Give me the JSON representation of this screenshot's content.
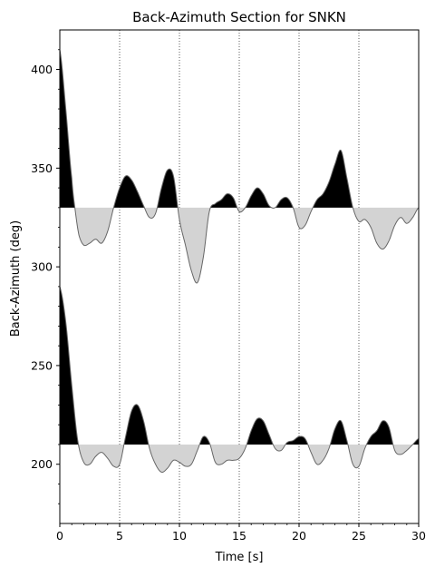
{
  "chart_data": {
    "type": "area",
    "title": "Back-Azimuth Section for SNKN",
    "xlabel": "Time [s]",
    "ylabel": "Back-Azimuth (deg)",
    "xlim": [
      0,
      30
    ],
    "ylim": [
      170,
      420
    ],
    "xticks": [
      "0",
      "5",
      "10",
      "15",
      "20",
      "25",
      "30"
    ],
    "yticks": [
      "200",
      "250",
      "300",
      "350",
      "400"
    ],
    "xtick_values": [
      0,
      5,
      10,
      15,
      20,
      25,
      30
    ],
    "ytick_values": [
      200,
      250,
      300,
      350,
      400
    ],
    "vertical_gridlines": [
      5,
      10,
      15,
      20,
      25
    ],
    "grid": "vertical dotted lines at x ticks",
    "fill_positive": "#000000",
    "fill_negative": "#d3d3d3",
    "trace_line_color": "#666666",
    "series": [
      {
        "baseline": 330,
        "x": [
          0,
          0.5,
          1,
          1.3,
          1.6,
          2,
          2.5,
          3,
          3.5,
          4,
          4.5,
          5,
          5.5,
          6,
          6.5,
          7,
          7.5,
          8,
          8.5,
          9,
          9.5,
          10,
          10.5,
          11,
          11.5,
          12,
          12.5,
          13,
          13.5,
          14,
          14.5,
          15,
          15.5,
          16,
          16.5,
          17,
          17.5,
          18,
          18.5,
          19,
          19.5,
          20,
          20.5,
          21,
          21.5,
          22,
          22.5,
          23,
          23.5,
          24,
          24.5,
          25,
          25.5,
          26,
          26.5,
          27,
          27.5,
          28,
          28.5,
          29,
          29.5,
          30
        ],
        "y": [
          410,
          380,
          345,
          328,
          316,
          311,
          312,
          314,
          312,
          318,
          330,
          340,
          346,
          344,
          338,
          331,
          325,
          327,
          340,
          349,
          346,
          324,
          311,
          298,
          292,
          305,
          328,
          332,
          334,
          337,
          335,
          328,
          330,
          336,
          340,
          337,
          331,
          330,
          334,
          335,
          330,
          320,
          321,
          328,
          334,
          337,
          343,
          352,
          359,
          345,
          330,
          323,
          324,
          320,
          312,
          309,
          313,
          321,
          325,
          322,
          325,
          330
        ]
      },
      {
        "baseline": 210,
        "x": [
          0,
          0.5,
          1,
          1.5,
          2,
          2.5,
          3,
          3.5,
          4,
          4.5,
          5,
          5.5,
          6,
          6.5,
          7,
          7.5,
          8,
          8.5,
          9,
          9.5,
          10,
          10.5,
          11,
          11.5,
          12,
          12.5,
          13,
          13.5,
          14,
          14.5,
          15,
          15.5,
          16,
          16.5,
          17,
          17.5,
          18,
          18.5,
          19,
          19.5,
          20,
          20.5,
          21,
          21.5,
          22,
          22.5,
          23,
          23.5,
          24,
          24.5,
          25,
          25.5,
          26,
          26.5,
          27,
          27.5,
          28,
          28.5,
          29,
          29.5,
          30
        ],
        "y": [
          290,
          272,
          240,
          212,
          201,
          200,
          204,
          206,
          203,
          199,
          200,
          214,
          227,
          230,
          222,
          208,
          200,
          196,
          198,
          202,
          201,
          199,
          200,
          207,
          214,
          211,
          201,
          200,
          202,
          202,
          203,
          208,
          217,
          223,
          222,
          215,
          208,
          207,
          211,
          212,
          214,
          213,
          206,
          200,
          202,
          208,
          218,
          222,
          212,
          200,
          199,
          208,
          214,
          217,
          222,
          219,
          207,
          205,
          207,
          210,
          213
        ]
      }
    ]
  }
}
